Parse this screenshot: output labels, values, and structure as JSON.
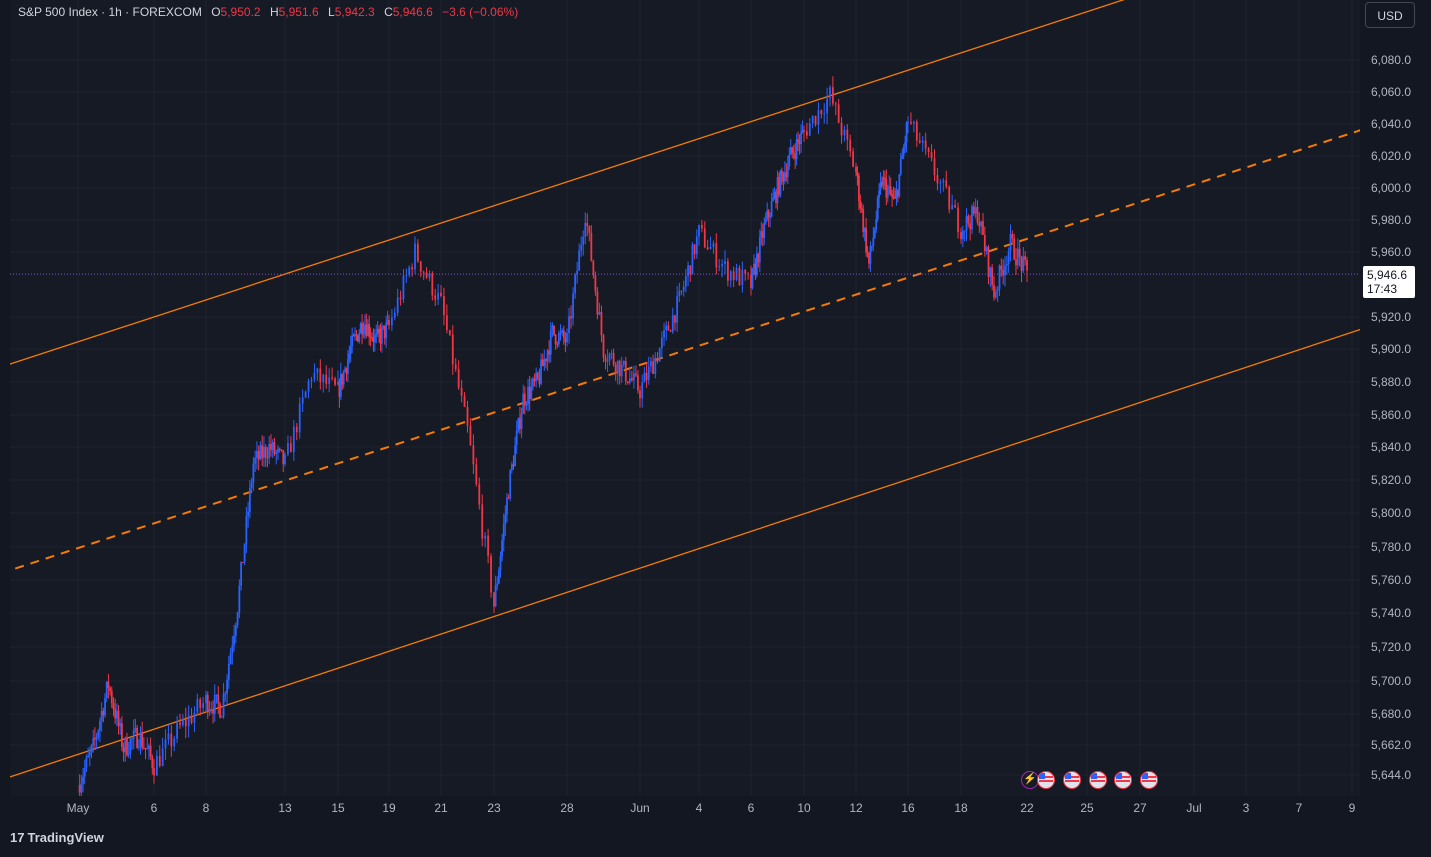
{
  "legend": {
    "symbol": "S&P 500 Index · 1h · FOREXCOM",
    "open_label": "O",
    "open": "5,950.2",
    "high_label": "H",
    "high": "5,951.6",
    "low_label": "L",
    "low": "5,942.3",
    "close_label": "C",
    "close": "5,946.6",
    "change": "−3.6 (−0.06%)"
  },
  "currency_button": "USD",
  "last_price": {
    "value": "5,946.6",
    "countdown": "17:43"
  },
  "branding": {
    "logo_mark": "17",
    "name": "TradingView"
  },
  "events": [
    "bolt-icon",
    "us-flag-icon",
    "us-flag-icon",
    "us-flag-icon",
    "us-flag-icon",
    "us-flag-icon"
  ],
  "colors": {
    "up": "#2962ff",
    "down": "#f23645",
    "channel": "#f57c00",
    "background": "#161a25",
    "price_line": "#7e57c2"
  },
  "chart_data": {
    "type": "candlestick",
    "symbol": "S&P 500 Index",
    "interval": "1h",
    "y_ticks": [
      {
        "v": 5644,
        "label": "5,644.0"
      },
      {
        "v": 5662,
        "label": "5,662.0"
      },
      {
        "v": 5680,
        "label": "5,680.0"
      },
      {
        "v": 5700,
        "label": "5,700.0"
      },
      {
        "v": 5720,
        "label": "5,720.0"
      },
      {
        "v": 5740,
        "label": "5,740.0"
      },
      {
        "v": 5760,
        "label": "5,760.0"
      },
      {
        "v": 5780,
        "label": "5,780.0"
      },
      {
        "v": 5800,
        "label": "5,800.0"
      },
      {
        "v": 5820,
        "label": "5,820.0"
      },
      {
        "v": 5840,
        "label": "5,840.0"
      },
      {
        "v": 5860,
        "label": "5,860.0"
      },
      {
        "v": 5880,
        "label": "5,880.0"
      },
      {
        "v": 5900,
        "label": "5,900.0"
      },
      {
        "v": 5920,
        "label": "5,920.0"
      },
      {
        "v": 5960,
        "label": "5,960.0"
      },
      {
        "v": 5980,
        "label": "5,980.0"
      },
      {
        "v": 6000,
        "label": "6,000.0"
      },
      {
        "v": 6020,
        "label": "6,020.0"
      },
      {
        "v": 6040,
        "label": "6,040.0"
      },
      {
        "v": 6060,
        "label": "6,060.0"
      },
      {
        "v": 6080,
        "label": "6,080.0"
      }
    ],
    "x_ticks": [
      {
        "label": "May",
        "date": "2025-05-01"
      },
      {
        "label": "6",
        "date": "2025-05-06"
      },
      {
        "label": "8",
        "date": "2025-05-08"
      },
      {
        "label": "13",
        "date": "2025-05-13"
      },
      {
        "label": "15",
        "date": "2025-05-15"
      },
      {
        "label": "19",
        "date": "2025-05-19"
      },
      {
        "label": "21",
        "date": "2025-05-21"
      },
      {
        "label": "23",
        "date": "2025-05-23"
      },
      {
        "label": "28",
        "date": "2025-05-28"
      },
      {
        "label": "Jun",
        "date": "2025-06-01"
      },
      {
        "label": "4",
        "date": "2025-06-04"
      },
      {
        "label": "6",
        "date": "2025-06-06"
      },
      {
        "label": "10",
        "date": "2025-06-10"
      },
      {
        "label": "12",
        "date": "2025-06-12"
      },
      {
        "label": "16",
        "date": "2025-06-16"
      },
      {
        "label": "18",
        "date": "2025-06-18"
      },
      {
        "label": "22",
        "date": "2025-06-22"
      },
      {
        "label": "25",
        "date": "2025-06-25"
      },
      {
        "label": "27",
        "date": "2025-06-27"
      },
      {
        "label": "Jul",
        "date": "2025-07-01"
      },
      {
        "label": "3",
        "date": "2025-07-03"
      },
      {
        "label": "7",
        "date": "2025-07-07"
      },
      {
        "label": "9",
        "date": "2025-07-09"
      }
    ],
    "price_path": [
      [
        "2025-05-01",
        5638
      ],
      [
        "2025-05-02",
        5660
      ],
      [
        "2025-05-03",
        5698
      ],
      [
        "2025-05-04",
        5660
      ],
      [
        "2025-05-05",
        5668
      ],
      [
        "2025-05-06",
        5650
      ],
      [
        "2025-05-07",
        5672
      ],
      [
        "2025-05-08",
        5688
      ],
      [
        "2025-05-09",
        5684
      ],
      [
        "2025-05-10",
        5745
      ],
      [
        "2025-05-11",
        5830
      ],
      [
        "2025-05-12",
        5840
      ],
      [
        "2025-05-13",
        5830
      ],
      [
        "2025-05-14",
        5885
      ],
      [
        "2025-05-15",
        5874
      ],
      [
        "2025-05-16",
        5900
      ],
      [
        "2025-05-17",
        5918
      ],
      [
        "2025-05-18",
        5905
      ],
      [
        "2025-05-19",
        5914
      ],
      [
        "2025-05-20",
        5960
      ],
      [
        "2025-05-21",
        5928
      ],
      [
        "2025-05-22",
        5850
      ],
      [
        "2025-05-23",
        5745
      ],
      [
        "2025-05-24",
        5815
      ],
      [
        "2025-05-25",
        5870
      ],
      [
        "2025-05-26",
        5880
      ],
      [
        "2025-05-27",
        5910
      ],
      [
        "2025-05-28",
        5905
      ],
      [
        "2025-05-29",
        5985
      ],
      [
        "2025-05-30",
        5900
      ],
      [
        "2025-05-31",
        5888
      ],
      [
        "2025-06-01",
        5875
      ],
      [
        "2025-06-02",
        5900
      ],
      [
        "2025-06-03",
        5930
      ],
      [
        "2025-06-04",
        5972
      ],
      [
        "2025-06-05",
        5950
      ],
      [
        "2025-06-06",
        5940
      ],
      [
        "2025-06-07",
        5975
      ],
      [
        "2025-06-08",
        6000
      ],
      [
        "2025-06-09",
        6020
      ],
      [
        "2025-06-10",
        6035
      ],
      [
        "2025-06-11",
        6058
      ],
      [
        "2025-06-12",
        6010
      ],
      [
        "2025-06-13",
        5952
      ],
      [
        "2025-06-14",
        6005
      ],
      [
        "2025-06-15",
        5990
      ],
      [
        "2025-06-16",
        6042
      ],
      [
        "2025-06-17",
        6010
      ],
      [
        "2025-06-18",
        5975
      ],
      [
        "2025-06-19",
        5985
      ],
      [
        "2025-06-20",
        5935
      ],
      [
        "2025-06-21",
        5965
      ],
      [
        "2025-06-22",
        5946.6
      ]
    ],
    "channel": {
      "upper": [
        [
          "2025-04-30",
          5900
        ],
        [
          "2025-06-23",
          6102
        ]
      ],
      "middle": [
        [
          "2025-04-30",
          5775
        ],
        [
          "2025-07-08",
          6029
        ]
      ],
      "lower": [
        [
          "2025-04-30",
          5652
        ],
        [
          "2025-07-08",
          5905
        ]
      ]
    },
    "last_price": 5946.6,
    "grid": true
  }
}
